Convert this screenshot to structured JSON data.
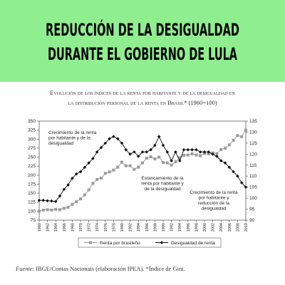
{
  "header": {
    "lines": [
      "REDUCCIÓN DE LA DESIGUALDAD",
      "DURANTE EL GOBIERNO DE LULA"
    ]
  },
  "chart_data": {
    "type": "line",
    "title": [
      "Evolución de los índices de la renta por habitante y de la desigualdad en",
      "la distribución personal de la renta en Brasil* (1960=100)"
    ],
    "x": [
      1960,
      1961,
      1962,
      1963,
      1964,
      1965,
      1966,
      1967,
      1968,
      1969,
      1970,
      1971,
      1972,
      1973,
      1974,
      1975,
      1976,
      1977,
      1978,
      1979,
      1980,
      1981,
      1982,
      1983,
      1984,
      1985,
      1986,
      1987,
      1988,
      1989,
      1990,
      1991,
      1992,
      1993,
      1994,
      1995,
      1996,
      1997,
      1998,
      1999,
      2000,
      2001,
      2002,
      2003,
      2004,
      2005,
      2006,
      2007,
      2008,
      2009,
      2010
    ],
    "xlim": [
      1960,
      2010
    ],
    "xticks": [
      1960,
      1962,
      1964,
      1966,
      1968,
      1970,
      1972,
      1974,
      1976,
      1978,
      1980,
      1982,
      1984,
      1986,
      1988,
      1990,
      1992,
      1994,
      1996,
      1998,
      2000,
      2002,
      2004,
      2006,
      2008,
      2010
    ],
    "ylim": [
      75,
      350
    ],
    "yticks": [
      75,
      100,
      125,
      150,
      175,
      200,
      225,
      250,
      275,
      300,
      325,
      350
    ],
    "y2lim": [
      90,
      135
    ],
    "y2ticks": [
      90,
      95,
      100,
      105,
      110,
      115,
      120,
      125,
      130,
      135
    ],
    "series": [
      {
        "name": "Renta por brasileño",
        "color": "#9a9a9a",
        "marker": "square",
        "values": [
          100,
          103,
          104,
          103,
          105,
          104,
          108,
          111,
          119,
          126,
          134,
          145,
          159,
          177,
          188,
          192,
          205,
          209,
          214,
          222,
          236,
          226,
          226,
          216,
          222,
          234,
          247,
          251,
          245,
          250,
          235,
          234,
          228,
          237,
          248,
          255,
          256,
          259,
          256,
          254,
          260,
          259,
          262,
          260,
          271,
          275,
          284,
          297,
          310,
          307,
          325
        ]
      },
      {
        "name": "Desigualdad de renta",
        "color": "#111111",
        "marker": "diamond",
        "axis": "y2",
        "values": [
          99,
          99,
          98.8,
          98.7,
          98.5,
          101,
          104,
          106,
          109,
          111,
          112,
          114,
          116,
          118,
          121,
          123,
          125,
          127,
          128,
          127,
          125,
          122,
          120,
          121,
          119,
          121,
          121,
          122,
          124,
          128,
          124,
          121,
          117,
          121,
          117,
          122,
          122,
          122,
          122,
          121,
          121,
          121,
          120,
          119,
          117,
          116,
          114,
          112,
          110,
          107,
          105
        ]
      }
    ],
    "annotations": [
      {
        "lines": [
          "Crecimiento de la renta",
          "por habitante y de la",
          "desigualdad"
        ]
      },
      {
        "lines": [
          "Estancamiento de la",
          "renta por habitante y",
          "de la desigualdad"
        ]
      },
      {
        "lines": [
          "Crecimiento de la renta",
          "por habitante y",
          "reducción de la",
          "desigualdad"
        ]
      }
    ],
    "source": {
      "label": "Fuente",
      "text": ": IBGE/Contas Nacionais (elaboración IPEA). *Índice de Gini."
    }
  }
}
